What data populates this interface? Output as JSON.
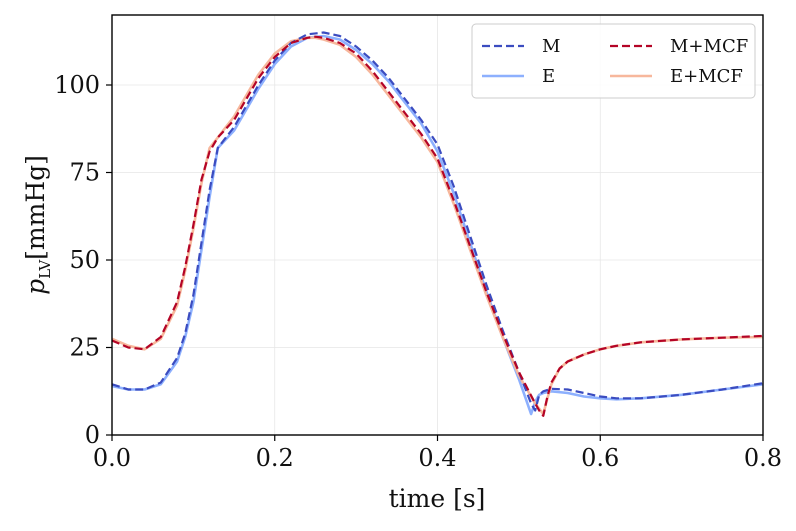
{
  "chart_data": {
    "type": "line",
    "title": "",
    "xlabel": "time [s]",
    "ylabel_main": "p",
    "ylabel_sub": "LV",
    "ylabel_unit": "[mmHg]",
    "xlim": [
      0.0,
      0.8
    ],
    "ylim": [
      0,
      120
    ],
    "xticks": [
      0.0,
      0.2,
      0.4,
      0.6,
      0.8
    ],
    "xtick_labels": [
      "0.0",
      "0.2",
      "0.4",
      "0.6",
      "0.8"
    ],
    "yticks": [
      0,
      25,
      50,
      75,
      100
    ],
    "ytick_labels": [
      "0",
      "25",
      "50",
      "75",
      "100"
    ],
    "grid": true,
    "legend_position": "top-right",
    "series": [
      {
        "name": "M",
        "color": "#3b4cc0",
        "style": "dashed",
        "x": [
          0.0,
          0.02,
          0.04,
          0.06,
          0.08,
          0.09,
          0.1,
          0.11,
          0.12,
          0.13,
          0.15,
          0.18,
          0.2,
          0.22,
          0.24,
          0.26,
          0.28,
          0.3,
          0.32,
          0.34,
          0.36,
          0.38,
          0.4,
          0.42,
          0.44,
          0.46,
          0.48,
          0.5,
          0.515,
          0.52,
          0.525,
          0.53,
          0.54,
          0.56,
          0.58,
          0.6,
          0.62,
          0.65,
          0.7,
          0.75,
          0.8
        ],
        "y": [
          14.5,
          13.0,
          13.0,
          15.0,
          22.0,
          29.0,
          40.0,
          55.0,
          70.0,
          82.0,
          88.0,
          100.0,
          107.0,
          112.0,
          114.5,
          115.0,
          114.0,
          111.0,
          107.0,
          102.0,
          96.0,
          90.0,
          83.0,
          71.0,
          57.0,
          43.0,
          30.0,
          18.0,
          9.0,
          7.0,
          11.5,
          12.5,
          13.2,
          13.0,
          12.0,
          11.0,
          10.5,
          10.5,
          11.5,
          13.0,
          14.8
        ]
      },
      {
        "name": "E",
        "color": "#8db0fe",
        "style": "solid",
        "x": [
          0.0,
          0.02,
          0.04,
          0.06,
          0.08,
          0.09,
          0.1,
          0.11,
          0.12,
          0.13,
          0.15,
          0.18,
          0.2,
          0.22,
          0.24,
          0.26,
          0.28,
          0.3,
          0.32,
          0.34,
          0.36,
          0.38,
          0.4,
          0.42,
          0.44,
          0.46,
          0.48,
          0.5,
          0.515,
          0.52,
          0.525,
          0.53,
          0.54,
          0.56,
          0.58,
          0.6,
          0.62,
          0.65,
          0.7,
          0.75,
          0.8
        ],
        "y": [
          14.0,
          13.0,
          13.0,
          14.5,
          21.0,
          28.0,
          38.0,
          53.0,
          68.0,
          82.0,
          87.0,
          99.0,
          106.0,
          111.0,
          113.5,
          114.0,
          113.0,
          110.0,
          106.0,
          101.0,
          95.0,
          89.0,
          81.0,
          69.0,
          55.0,
          41.0,
          28.0,
          16.0,
          6.0,
          9.5,
          11.5,
          12.0,
          12.5,
          12.0,
          11.0,
          10.5,
          10.2,
          10.5,
          11.5,
          13.0,
          14.5
        ]
      },
      {
        "name": "M+MCF",
        "color": "#b40426",
        "style": "dashed",
        "x": [
          0.0,
          0.02,
          0.04,
          0.06,
          0.08,
          0.09,
          0.1,
          0.11,
          0.12,
          0.13,
          0.15,
          0.18,
          0.2,
          0.22,
          0.24,
          0.25,
          0.26,
          0.28,
          0.3,
          0.32,
          0.34,
          0.36,
          0.38,
          0.4,
          0.42,
          0.44,
          0.46,
          0.48,
          0.5,
          0.52,
          0.525,
          0.53,
          0.535,
          0.54,
          0.55,
          0.56,
          0.58,
          0.6,
          0.62,
          0.65,
          0.7,
          0.75,
          0.8
        ],
        "y": [
          27.0,
          25.0,
          24.5,
          28.0,
          38.0,
          48.0,
          60.0,
          73.0,
          81.0,
          85.0,
          90.0,
          102.0,
          108.0,
          112.0,
          113.5,
          113.8,
          113.5,
          112.0,
          109.0,
          104.0,
          98.0,
          92.0,
          86.0,
          79.0,
          67.0,
          54.0,
          41.0,
          29.0,
          18.0,
          9.0,
          7.0,
          5.5,
          11.0,
          15.0,
          19.0,
          21.0,
          23.0,
          24.5,
          25.5,
          26.5,
          27.3,
          27.8,
          28.3
        ]
      },
      {
        "name": "E+MCF",
        "color": "#f7b79c",
        "style": "solid",
        "x": [
          0.0,
          0.02,
          0.04,
          0.06,
          0.08,
          0.09,
          0.1,
          0.11,
          0.12,
          0.13,
          0.15,
          0.18,
          0.2,
          0.22,
          0.24,
          0.25,
          0.26,
          0.28,
          0.3,
          0.32,
          0.34,
          0.36,
          0.38,
          0.4,
          0.42,
          0.44,
          0.46,
          0.48,
          0.5,
          0.52,
          0.525,
          0.53,
          0.535,
          0.54,
          0.55,
          0.56,
          0.58,
          0.6,
          0.62,
          0.65,
          0.7,
          0.75,
          0.8
        ],
        "y": [
          27.5,
          25.5,
          24.5,
          27.5,
          37.0,
          47.0,
          59.0,
          72.0,
          82.0,
          85.0,
          91.0,
          103.0,
          109.0,
          112.5,
          113.5,
          113.5,
          113.0,
          111.5,
          108.0,
          103.0,
          97.0,
          91.0,
          85.0,
          78.0,
          66.0,
          53.0,
          40.0,
          28.0,
          17.0,
          9.0,
          7.5,
          6.0,
          10.5,
          14.5,
          19.0,
          21.0,
          23.0,
          24.5,
          25.5,
          26.5,
          27.3,
          27.8,
          28.0
        ]
      }
    ]
  }
}
